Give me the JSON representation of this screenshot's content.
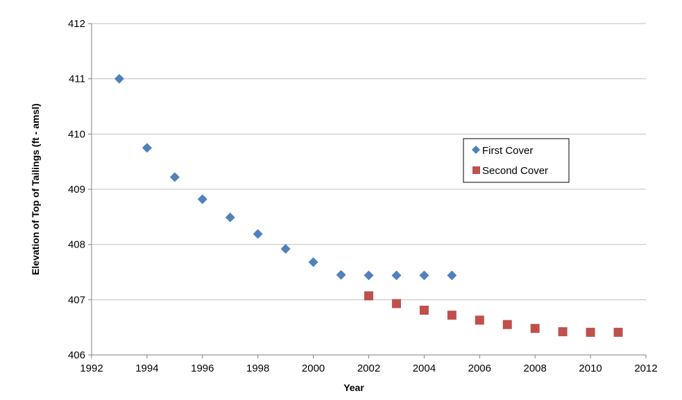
{
  "chart_data": {
    "type": "scatter",
    "title": "",
    "xlabel": "Year",
    "ylabel": "Elevation of Top of Tailings (ft - amsl)",
    "xlim": [
      1992,
      2012
    ],
    "ylim": [
      406,
      412
    ],
    "x_ticks": [
      1992,
      1994,
      1996,
      1998,
      2000,
      2002,
      2004,
      2006,
      2008,
      2010,
      2012
    ],
    "y_ticks": [
      406,
      407,
      408,
      409,
      410,
      411,
      412
    ],
    "grid": "horizontal",
    "legend_position": "right",
    "series": [
      {
        "name": "First Cover",
        "marker": "diamond",
        "color": "#4f81bd",
        "x": [
          1993,
          1994,
          1995,
          1996,
          1997,
          1998,
          1999,
          2000,
          2001,
          2002,
          2003,
          2004,
          2005
        ],
        "y": [
          411.0,
          409.75,
          409.22,
          408.82,
          408.49,
          408.19,
          407.92,
          407.68,
          407.45,
          407.44,
          407.44,
          407.44,
          407.44
        ]
      },
      {
        "name": "Second Cover",
        "marker": "square",
        "color": "#c0504d",
        "x": [
          2002,
          2003,
          2004,
          2005,
          2006,
          2007,
          2008,
          2009,
          2010,
          2011
        ],
        "y": [
          407.07,
          406.93,
          406.81,
          406.72,
          406.63,
          406.55,
          406.48,
          406.42,
          406.41,
          406.41
        ]
      }
    ]
  }
}
